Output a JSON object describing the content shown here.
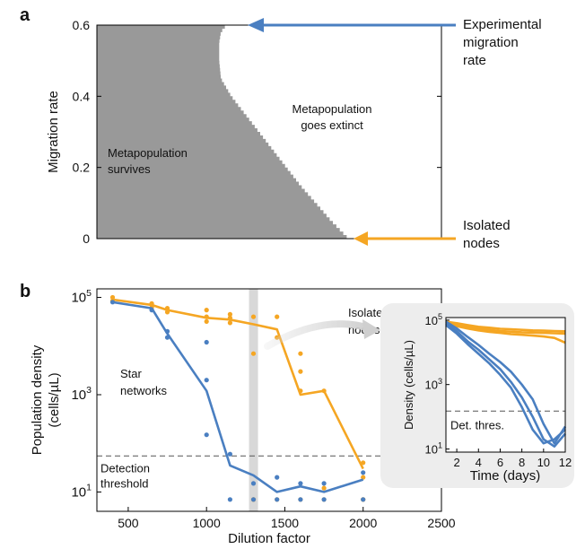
{
  "panels": {
    "a": "a",
    "b": "b"
  },
  "colors": {
    "star": "#4a7fc1",
    "isolated": "#f5a623",
    "survive_region": "#999999",
    "inset_bg": "#ededed",
    "grey_text": "#555555"
  },
  "chart_data": [
    {
      "id": "panel-a",
      "type": "area",
      "title": "",
      "xlabel": "",
      "ylabel": "Migration rate",
      "ylim": [
        0,
        0.6
      ],
      "yticks": [
        "0",
        "0.2",
        "0.4",
        "0.6"
      ],
      "regions": {
        "survive": "Metapopulation\nsurvives",
        "extinct": "Metapopulation\ngoes extinct"
      },
      "boundary": {
        "y": [
          0.0,
          0.05,
          0.1,
          0.15,
          0.2,
          0.25,
          0.3,
          0.35,
          0.4,
          0.45,
          0.5,
          0.55,
          0.58,
          0.6
        ],
        "x_fraction": [
          0.73,
          0.68,
          0.635,
          0.59,
          0.55,
          0.51,
          0.47,
          0.43,
          0.39,
          0.36,
          0.355,
          0.355,
          0.36,
          0.375
        ]
      },
      "annotations": [
        {
          "text": "Experimental\nmigration\nrate",
          "y": 0.6,
          "color": "#4a7fc1"
        },
        {
          "text": "Isolated\nnodes",
          "y": 0.0,
          "color": "#f5a623"
        }
      ]
    },
    {
      "id": "panel-b-main",
      "type": "scatter",
      "xlabel": "Dilution factor",
      "ylabel": "Population density\n(cells/µL)",
      "xlim": [
        300,
        2500
      ],
      "xticks": [
        "500",
        "1000",
        "1500",
        "2000",
        "2500"
      ],
      "ylog": true,
      "ylim": [
        4,
        150000
      ],
      "ytick_labels": [
        {
          "base": "10",
          "exp": "1"
        },
        {
          "base": "10",
          "exp": "3"
        },
        {
          "base": "10",
          "exp": "5"
        }
      ],
      "highlight_x": 1300,
      "detection_threshold": {
        "value": 55,
        "label": "Detection\nthreshold"
      },
      "series": [
        {
          "name": "Isolated\nnodes",
          "color": "#f5a623",
          "line": {
            "x": [
              400,
              650,
              750,
              1000,
              1150,
              1300,
              1450,
              1600,
              1750,
              2000
            ],
            "y": [
              90000,
              70000,
              55000,
              38000,
              35000,
              28000,
              22000,
              1000,
              1200,
              30
            ]
          },
          "points": {
            "x": [
              400,
              400,
              650,
              650,
              750,
              750,
              1000,
              1000,
              1000,
              1150,
              1150,
              1150,
              1300,
              1300,
              1300,
              1300,
              1450,
              1450,
              1450,
              1600,
              1600,
              1600,
              1600,
              1750,
              1750,
              1750,
              2000,
              2000,
              2000,
              2000
            ],
            "y": [
              100000,
              85000,
              75000,
              62000,
              60000,
              50000,
              55000,
              40000,
              32000,
              45000,
              38000,
              30000,
              40000,
              7000,
              7,
              7,
              40000,
              15000,
              7,
              7000,
              3000,
              1200,
              7,
              1200,
              12,
              7,
              40,
              20,
              7,
              7
            ]
          }
        },
        {
          "name": "Star\nnetworks",
          "color": "#4a7fc1",
          "line": {
            "x": [
              400,
              650,
              750,
              1000,
              1150,
              1300,
              1450,
              1600,
              1750,
              2000
            ],
            "y": [
              80000,
              60000,
              18000,
              1200,
              35,
              22,
              10,
              13,
              10,
              18
            ]
          },
          "points": {
            "x": [
              400,
              650,
              750,
              750,
              1000,
              1000,
              1000,
              1150,
              1150,
              1300,
              1300,
              1450,
              1450,
              1600,
              1600,
              1750,
              1750,
              2000,
              2000
            ],
            "y": [
              80000,
              55000,
              20000,
              15000,
              2000,
              150,
              12000,
              60,
              7,
              15,
              7,
              20,
              7,
              15,
              7,
              15,
              7,
              25,
              7
            ]
          }
        }
      ]
    },
    {
      "id": "panel-b-inset",
      "type": "line",
      "xlabel": "Time (days)",
      "ylabel": "Density (cells/µL)",
      "xlim": [
        1,
        12
      ],
      "xticks": [
        "2",
        "4",
        "6",
        "8",
        "10",
        "12"
      ],
      "ylog": true,
      "ylim": [
        8,
        120000
      ],
      "ytick_labels": [
        {
          "base": "10",
          "exp": "1"
        },
        {
          "base": "10",
          "exp": "3"
        },
        {
          "base": "10",
          "exp": "5"
        }
      ],
      "detection_threshold": {
        "value": 150,
        "label": "Det. thres."
      },
      "series": [
        {
          "color": "#f5a623",
          "x": [
            1,
            2,
            3,
            4,
            5,
            6,
            7,
            8,
            9,
            10,
            11,
            12
          ],
          "y": [
            90000,
            80000,
            70000,
            62000,
            58000,
            54000,
            52000,
            50000,
            48000,
            47000,
            46000,
            45000
          ]
        },
        {
          "color": "#f5a623",
          "x": [
            1,
            2,
            3,
            4,
            5,
            6,
            7,
            8,
            9,
            10,
            11,
            12
          ],
          "y": [
            85000,
            72000,
            62000,
            55000,
            50000,
            46000,
            44000,
            42000,
            41000,
            40000,
            39000,
            38000
          ]
        },
        {
          "color": "#f5a623",
          "x": [
            1,
            2,
            3,
            4,
            5,
            6,
            7,
            8,
            9,
            10,
            11,
            12
          ],
          "y": [
            80000,
            65000,
            55000,
            48000,
            43000,
            40000,
            37000,
            35000,
            33000,
            31000,
            28000,
            20000
          ]
        },
        {
          "color": "#4a7fc1",
          "x": [
            1,
            2,
            3,
            4,
            5,
            6,
            7,
            8,
            9,
            10,
            11,
            12
          ],
          "y": [
            90000,
            55000,
            30000,
            17000,
            9000,
            5000,
            2500,
            1000,
            350,
            60,
            15,
            50
          ]
        },
        {
          "color": "#4a7fc1",
          "x": [
            1,
            2,
            3,
            4,
            5,
            6,
            7,
            8,
            9,
            10,
            11,
            12
          ],
          "y": [
            80000,
            45000,
            22000,
            12000,
            6000,
            3000,
            1200,
            400,
            100,
            20,
            12,
            30
          ]
        },
        {
          "color": "#4a7fc1",
          "x": [
            1,
            2,
            3,
            4,
            5,
            6,
            7,
            8,
            9,
            10,
            11,
            12
          ],
          "y": [
            70000,
            38000,
            18000,
            9000,
            4500,
            2000,
            800,
            200,
            40,
            15,
            20,
            40
          ]
        }
      ]
    }
  ]
}
